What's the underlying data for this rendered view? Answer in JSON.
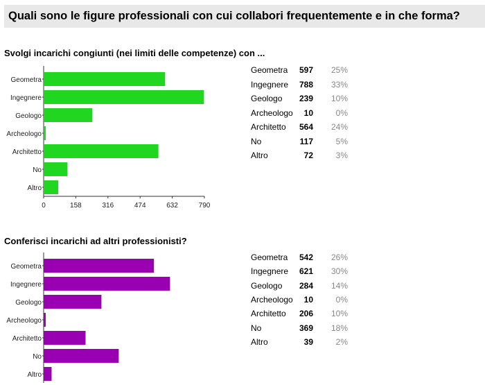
{
  "header": {
    "title": "Quali sono le figure professionali con cui collabori frequentemente e in che forma?"
  },
  "colors": {
    "green": "#21d621",
    "purple": "#9900b2"
  },
  "chart_data": [
    {
      "type": "bar",
      "orientation": "horizontal",
      "title": "Svolgi incarichi congiunti (nei limiti delle competenze) con ...",
      "categories": [
        "Geometra",
        "Ingegnere",
        "Geologo",
        "Archeologo",
        "Architetto",
        "No",
        "Altro"
      ],
      "values": [
        597,
        788,
        239,
        10,
        564,
        117,
        72
      ],
      "percents": [
        "25%",
        "33%",
        "10%",
        "0%",
        "24%",
        "5%",
        "3%"
      ],
      "xlim": [
        0,
        790
      ],
      "xticks": [
        "0",
        "158",
        "316",
        "474",
        "632",
        "790"
      ],
      "color": "#21d621",
      "grid": false
    },
    {
      "type": "bar",
      "orientation": "horizontal",
      "title": "Conferisci incarichi ad altri professionisti?",
      "categories": [
        "Geometra",
        "Ingegnere",
        "Geologo",
        "Archeologo",
        "Architetto",
        "No",
        "Altro"
      ],
      "values": [
        542,
        621,
        284,
        10,
        206,
        369,
        39
      ],
      "percents": [
        "26%",
        "30%",
        "14%",
        "0%",
        "10%",
        "18%",
        "2%"
      ],
      "xlim": [
        0,
        790
      ],
      "color": "#9900b2",
      "grid": false
    }
  ]
}
